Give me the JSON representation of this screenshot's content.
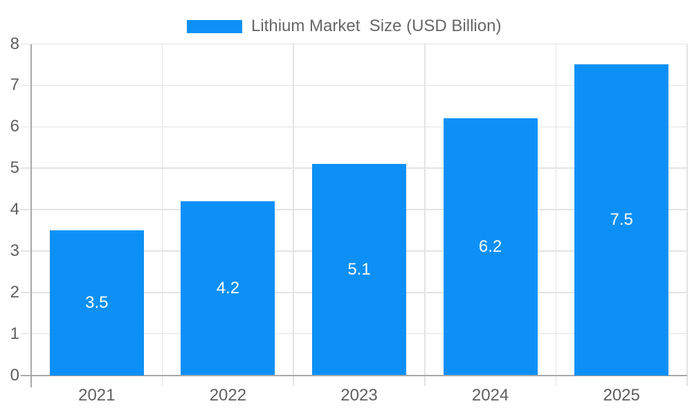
{
  "chart_data": {
    "type": "bar",
    "legend": {
      "position": "top",
      "label": "Lithium Market  Size (USD Billion)"
    },
    "categories": [
      "2021",
      "2022",
      "2023",
      "2024",
      "2025"
    ],
    "series": [
      {
        "name": "Lithium Market  Size (USD Billion)",
        "values": [
          3.5,
          4.2,
          5.1,
          6.2,
          7.5
        ]
      }
    ],
    "value_labels": [
      "3.5",
      "4.2",
      "5.1",
      "6.2",
      "7.5"
    ],
    "xlabel": "",
    "ylabel": "",
    "ylim": [
      0,
      8
    ],
    "ytick_interval": 1,
    "ytick_labels": [
      "0",
      "1",
      "2",
      "3",
      "4",
      "5",
      "6",
      "7",
      "8"
    ],
    "grid": {
      "horizontal": true,
      "vertical": true
    },
    "colors": {
      "bar": "#0D90F5",
      "value_label": "#FFFFFF",
      "gridline": "#E3E3E3",
      "axis_line": "#A8A8A8",
      "axis_text": "#5F5F5F",
      "legend_text": "#666666",
      "background": "#FFFFFF"
    }
  }
}
